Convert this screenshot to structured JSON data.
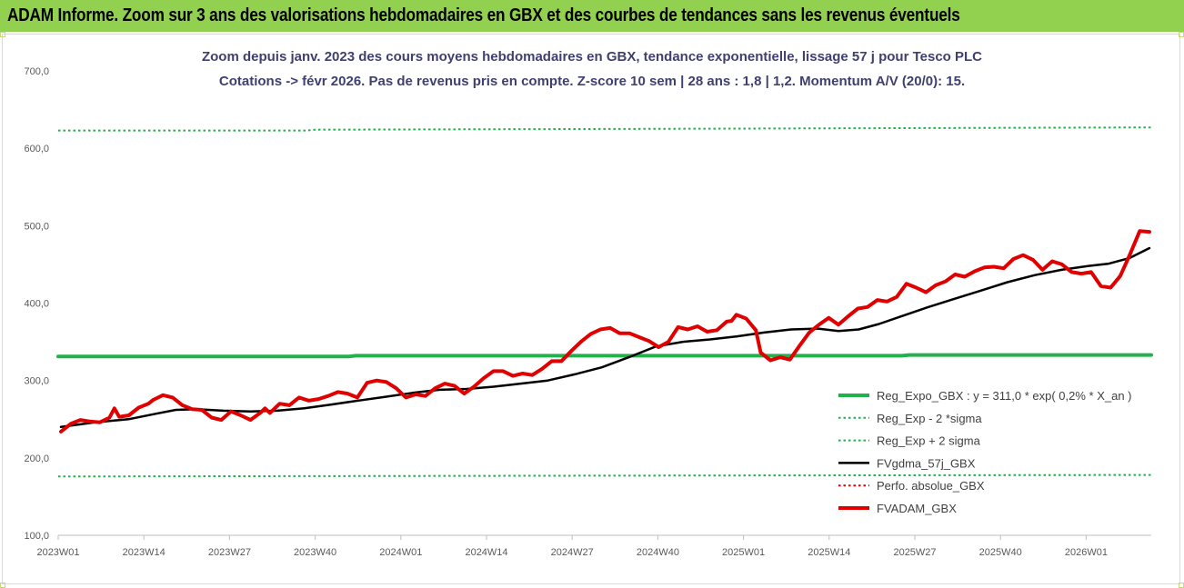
{
  "banner": {
    "title": "ADAM Informe. Zoom sur 3 ans des valorisations hebdomadaires en GBX et des courbes de tendances sans les revenus éventuels",
    "color": "#92d050"
  },
  "chart_data": {
    "type": "line",
    "title": "Zoom depuis janv. 2023 des cours moyens hebdomadaires en GBX, tendance exponentielle, lissage 57 j pour Tesco PLC",
    "subtitle": "Cotations -> févr 2026. Pas de revenus pris en compte. Z-score 10 sem | 28 ans : 1,8 | 1,2. Momentum A/V (20/0): 15.",
    "xlabel": "",
    "ylabel": "",
    "ylim": [
      100,
      700
    ],
    "y_ticks": [
      "100,0",
      "200,0",
      "300,0",
      "400,0",
      "500,0",
      "600,0",
      "700,0"
    ],
    "x_ticks": [
      "2023W01",
      "2023W14",
      "2023W27",
      "2023W40",
      "2024W01",
      "2024W14",
      "2024W27",
      "2024W40",
      "2025W01",
      "2025W14",
      "2025W27",
      "2025W40",
      "2026W01"
    ],
    "x_range_weeks": [
      0,
      158
    ],
    "grid": false,
    "legend_position": "bottom-right",
    "series": [
      {
        "name": "Reg_Expo_GBX : y = 311,0 * exp( 0,2% *  X_an )",
        "color": "#22b14c",
        "style": "solid-thick",
        "points": [
          [
            0,
            331
          ],
          [
            42,
            331
          ],
          [
            43,
            332
          ],
          [
            122,
            332
          ],
          [
            123,
            333
          ],
          [
            158,
            333
          ]
        ]
      },
      {
        "name": "Reg_Exp - 2 *sigma",
        "color": "#22b14c",
        "style": "dotted",
        "points": [
          [
            0,
            176
          ],
          [
            78,
            177
          ],
          [
            158,
            178
          ]
        ]
      },
      {
        "name": "Reg_Exp + 2 sigma",
        "color": "#22b14c",
        "style": "dotted",
        "points": [
          [
            0,
            623
          ],
          [
            36,
            623
          ],
          [
            37,
            624
          ],
          [
            80,
            625
          ],
          [
            158,
            627
          ]
        ]
      },
      {
        "name": "FVgdma_57j_GBX",
        "color": "#000000",
        "style": "solid",
        "points": [
          [
            0,
            240
          ],
          [
            5,
            246
          ],
          [
            10,
            250
          ],
          [
            14,
            257
          ],
          [
            17,
            262
          ],
          [
            20,
            263
          ],
          [
            24,
            261
          ],
          [
            28,
            260
          ],
          [
            32,
            261
          ],
          [
            36,
            264
          ],
          [
            40,
            269
          ],
          [
            44,
            274
          ],
          [
            48,
            279
          ],
          [
            52,
            284
          ],
          [
            56,
            288
          ],
          [
            60,
            289
          ],
          [
            64,
            292
          ],
          [
            68,
            296
          ],
          [
            72,
            300
          ],
          [
            76,
            308
          ],
          [
            80,
            317
          ],
          [
            84,
            330
          ],
          [
            88,
            344
          ],
          [
            92,
            350
          ],
          [
            96,
            353
          ],
          [
            100,
            357
          ],
          [
            104,
            362
          ],
          [
            108,
            366
          ],
          [
            112,
            367
          ],
          [
            115,
            364
          ],
          [
            118,
            366
          ],
          [
            121,
            373
          ],
          [
            124,
            382
          ],
          [
            128,
            394
          ],
          [
            132,
            405
          ],
          [
            136,
            416
          ],
          [
            140,
            427
          ],
          [
            144,
            436
          ],
          [
            148,
            443
          ],
          [
            152,
            448
          ],
          [
            155,
            451
          ],
          [
            158,
            458
          ],
          [
            161,
            471
          ]
        ]
      },
      {
        "name": "Perfo. absolue_GBX",
        "color": "#e00000",
        "style": "dotted",
        "points": []
      },
      {
        "name": "FVADAM_GBX",
        "color": "#e00000",
        "style": "solid-thick",
        "points": [
          [
            0,
            234
          ],
          [
            2,
            244
          ],
          [
            4,
            249
          ],
          [
            6,
            247
          ],
          [
            8,
            246
          ],
          [
            10,
            252
          ],
          [
            11,
            264
          ],
          [
            12,
            253
          ],
          [
            14,
            255
          ],
          [
            16,
            265
          ],
          [
            18,
            270
          ],
          [
            19,
            275
          ],
          [
            21,
            281
          ],
          [
            23,
            278
          ],
          [
            25,
            268
          ],
          [
            27,
            263
          ],
          [
            29,
            262
          ],
          [
            31,
            252
          ],
          [
            33,
            249
          ],
          [
            35,
            260
          ],
          [
            37,
            255
          ],
          [
            39,
            249
          ],
          [
            41,
            258
          ],
          [
            42,
            264
          ],
          [
            43,
            258
          ],
          [
            45,
            270
          ],
          [
            47,
            268
          ],
          [
            49,
            278
          ],
          [
            51,
            274
          ],
          [
            53,
            276
          ],
          [
            55,
            280
          ],
          [
            57,
            285
          ],
          [
            59,
            283
          ],
          [
            61,
            278
          ],
          [
            63,
            297
          ],
          [
            65,
            300
          ],
          [
            67,
            298
          ],
          [
            69,
            290
          ],
          [
            71,
            278
          ],
          [
            73,
            282
          ],
          [
            75,
            280
          ],
          [
            77,
            290
          ],
          [
            79,
            296
          ],
          [
            81,
            293
          ],
          [
            83,
            283
          ],
          [
            85,
            292
          ],
          [
            87,
            303
          ],
          [
            89,
            312
          ],
          [
            91,
            312
          ],
          [
            93,
            306
          ],
          [
            95,
            309
          ],
          [
            97,
            307
          ],
          [
            99,
            315
          ],
          [
            101,
            325
          ],
          [
            103,
            325
          ],
          [
            105,
            338
          ],
          [
            107,
            350
          ],
          [
            109,
            360
          ],
          [
            111,
            366
          ],
          [
            113,
            368
          ],
          [
            115,
            361
          ],
          [
            117,
            361
          ],
          [
            119,
            356
          ],
          [
            121,
            351
          ],
          [
            123,
            343
          ],
          [
            125,
            350
          ],
          [
            127,
            369
          ],
          [
            129,
            366
          ],
          [
            131,
            370
          ],
          [
            133,
            363
          ],
          [
            135,
            365
          ],
          [
            137,
            376
          ],
          [
            138,
            377
          ],
          [
            139,
            385
          ],
          [
            141,
            380
          ],
          [
            143,
            365
          ],
          [
            144,
            336
          ],
          [
            146,
            326
          ],
          [
            148,
            330
          ],
          [
            150,
            327
          ],
          [
            152,
            345
          ],
          [
            154,
            362
          ],
          [
            156,
            372
          ],
          [
            158,
            381
          ],
          [
            160,
            372
          ],
          [
            162,
            383
          ],
          [
            164,
            393
          ],
          [
            166,
            395
          ],
          [
            168,
            404
          ],
          [
            170,
            402
          ],
          [
            172,
            408
          ],
          [
            174,
            425
          ],
          [
            176,
            420
          ],
          [
            178,
            414
          ],
          [
            180,
            423
          ],
          [
            182,
            428
          ],
          [
            184,
            437
          ],
          [
            186,
            434
          ],
          [
            188,
            441
          ],
          [
            190,
            446
          ],
          [
            192,
            447
          ],
          [
            194,
            445
          ],
          [
            196,
            457
          ],
          [
            198,
            462
          ],
          [
            200,
            456
          ],
          [
            202,
            443
          ],
          [
            204,
            454
          ],
          [
            206,
            450
          ],
          [
            208,
            440
          ],
          [
            210,
            438
          ],
          [
            212,
            440
          ],
          [
            214,
            422
          ],
          [
            216,
            420
          ],
          [
            218,
            435
          ],
          [
            220,
            463
          ],
          [
            222,
            493
          ],
          [
            224,
            492
          ]
        ]
      }
    ]
  }
}
